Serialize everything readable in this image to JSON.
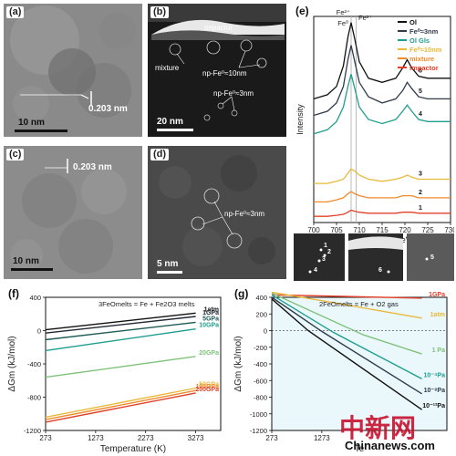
{
  "panel_a": {
    "label": "(a)",
    "lattice": "0.203 nm",
    "scale": "10 nm"
  },
  "panel_b": {
    "label": "(b)",
    "impactor": "Impactor",
    "mixture": "mixture",
    "np_large": "np-Fe⁰≈10nm",
    "np_small": "np-Fe⁰≈3nm",
    "scale": "20 nm"
  },
  "panel_c": {
    "label": "(c)",
    "lattice": "0.203 nm",
    "scale": "10 nm"
  },
  "panel_d": {
    "label": "(d)",
    "np_small": "np-Fe⁰≈3nm",
    "scale": "5 nm"
  },
  "inset_labels": [
    "1",
    "2",
    "3",
    "4",
    "6",
    "5"
  ],
  "watermark": {
    "cn": "中新网",
    "en": "Chinanews.com"
  },
  "chart_data": [
    {
      "id": "e",
      "panel_label": "(e)",
      "type": "line",
      "xlabel": "Energy Loss (eV)",
      "ylabel": "Intensity",
      "xlim": [
        700,
        730
      ],
      "xticks": [
        700,
        705,
        710,
        715,
        720,
        725,
        730
      ],
      "peak_labels": [
        "Fe²⁺",
        "Fe⁰",
        "Fe³⁺"
      ],
      "reference_lines_x": [
        708.2,
        709.3
      ],
      "legend_position": "top-right",
      "legend": [
        {
          "name": "Ol",
          "color": "#111111"
        },
        {
          "name": "Fe⁰≈3nm",
          "color": "#2f3b4c"
        },
        {
          "name": "Ol Gls",
          "color": "#1f9e8f"
        },
        {
          "name": "Fe⁰≈10nm",
          "color": "#e9b93c"
        },
        {
          "name": "mixture",
          "color": "#f08a2b"
        },
        {
          "name": "Impactor",
          "color": "#e0402a"
        }
      ],
      "series": [
        {
          "label": "6",
          "color": "#111111",
          "x": [
            700,
            703,
            705,
            706.5,
            707.5,
            708.2,
            709,
            710,
            712,
            715,
            718,
            719.5,
            720.5,
            721.5,
            723,
            725,
            727,
            730
          ],
          "y": [
            0.6,
            0.62,
            0.66,
            0.76,
            0.9,
            0.97,
            0.89,
            0.78,
            0.7,
            0.68,
            0.7,
            0.75,
            0.79,
            0.75,
            0.71,
            0.7,
            0.7,
            0.7
          ]
        },
        {
          "label": "5",
          "color": "#2f3b4c",
          "x": [
            700,
            703,
            705,
            706.5,
            707.5,
            708.2,
            709,
            710,
            712,
            715,
            718,
            719.5,
            720.5,
            721.5,
            723,
            725,
            727,
            730
          ],
          "y": [
            0.52,
            0.54,
            0.58,
            0.66,
            0.79,
            0.86,
            0.78,
            0.68,
            0.61,
            0.58,
            0.6,
            0.64,
            0.68,
            0.65,
            0.61,
            0.6,
            0.6,
            0.6
          ]
        },
        {
          "label": "4",
          "color": "#1f9e8f",
          "x": [
            700,
            703,
            705,
            706.5,
            707.5,
            708.2,
            709,
            710,
            712,
            715,
            718,
            719.5,
            720.5,
            721.5,
            723,
            725,
            727,
            730
          ],
          "y": [
            0.43,
            0.45,
            0.49,
            0.56,
            0.66,
            0.72,
            0.65,
            0.56,
            0.5,
            0.48,
            0.5,
            0.54,
            0.57,
            0.54,
            0.5,
            0.49,
            0.49,
            0.49
          ]
        },
        {
          "label": "3",
          "color": "#e9b93c",
          "x": [
            700,
            703,
            705,
            706.5,
            707.5,
            708.2,
            709,
            710,
            712,
            715,
            718,
            719.5,
            720.5,
            721.5,
            723,
            725,
            727,
            730
          ],
          "y": [
            0.19,
            0.19,
            0.2,
            0.21,
            0.24,
            0.26,
            0.25,
            0.23,
            0.21,
            0.2,
            0.21,
            0.22,
            0.23,
            0.22,
            0.21,
            0.21,
            0.21,
            0.21
          ]
        },
        {
          "label": "2",
          "color": "#f08a2b",
          "x": [
            700,
            703,
            705,
            706.5,
            707.5,
            708.2,
            709,
            710,
            712,
            715,
            718,
            719.5,
            720.5,
            721.5,
            723,
            725,
            727,
            730
          ],
          "y": [
            0.1,
            0.1,
            0.11,
            0.12,
            0.14,
            0.15,
            0.14,
            0.13,
            0.12,
            0.12,
            0.12,
            0.13,
            0.13,
            0.13,
            0.12,
            0.12,
            0.12,
            0.12
          ]
        },
        {
          "label": "1",
          "color": "#e0402a",
          "x": [
            700,
            703,
            705,
            706.5,
            707.5,
            708.2,
            709,
            710,
            712,
            715,
            718,
            719.5,
            720.5,
            721.5,
            723,
            725,
            727,
            730
          ],
          "y": [
            0.03,
            0.03,
            0.035,
            0.04,
            0.05,
            0.06,
            0.055,
            0.05,
            0.045,
            0.045,
            0.045,
            0.05,
            0.05,
            0.05,
            0.045,
            0.045,
            0.045,
            0.045
          ]
        }
      ]
    },
    {
      "id": "f",
      "panel_label": "(f)",
      "type": "line",
      "annotation": "3FeOmelts = Fe + Fe2O3 melts",
      "xlabel": "Temperature (K)",
      "ylabel": "ΔGm (kJ/mol)",
      "xlim": [
        273,
        3773
      ],
      "ylim": [
        -1200,
        400
      ],
      "xticks": [
        273,
        1273,
        2273,
        3273
      ],
      "yticks": [
        -1200,
        -800,
        -400,
        0,
        400
      ],
      "series": [
        {
          "name": "1atm",
          "color": "#111111",
          "x": [
            273,
            3273
          ],
          "y": [
            10,
            210
          ]
        },
        {
          "name": "1GPa",
          "color": "#222a35",
          "x": [
            273,
            3273
          ],
          "y": [
            -30,
            170
          ]
        },
        {
          "name": "5GPa",
          "color": "#1d5b57",
          "x": [
            273,
            3273
          ],
          "y": [
            -110,
            100
          ]
        },
        {
          "name": "10GPa",
          "color": "#1f9e8f",
          "x": [
            273,
            3273
          ],
          "y": [
            -240,
            20
          ]
        },
        {
          "name": "20GPa",
          "color": "#7fc37a",
          "x": [
            273,
            3273
          ],
          "y": [
            -560,
            -310
          ]
        },
        {
          "name": "50GPa",
          "color": "#e9b93c",
          "x": [
            273,
            3273
          ],
          "y": [
            -1040,
            -690
          ]
        },
        {
          "name": "100GPa",
          "color": "#f08a2b",
          "x": [
            273,
            3273
          ],
          "y": [
            -1070,
            -720
          ]
        },
        {
          "name": "200GPa",
          "color": "#e0402a",
          "x": [
            273,
            3273
          ],
          "y": [
            -1100,
            -750
          ]
        }
      ]
    },
    {
      "id": "g",
      "panel_label": "(g)",
      "type": "line",
      "annotation": "2FeOmelts = Fe + O2 gas",
      "xlabel": "Te",
      "ylabel": "ΔGm (kJ/mol)",
      "xlim": [
        273,
        3773
      ],
      "ylim": [
        -1200,
        400
      ],
      "xticks": [
        273,
        1273
      ],
      "yticks": [
        -1200,
        -1000,
        -800,
        -600,
        -400,
        -200,
        0,
        200,
        400
      ],
      "series": [
        {
          "name": "1GPa",
          "color": "#e0402a",
          "x": [
            273,
            3273
          ],
          "y": [
            430,
            390
          ]
        },
        {
          "name": "1atm",
          "color": "#e9b93c",
          "x": [
            273,
            1273,
            3273
          ],
          "y": [
            460,
            360,
            150
          ]
        },
        {
          "name": "1 Pa",
          "color": "#7fc37a",
          "x": [
            273,
            2100,
            3273
          ],
          "y": [
            450,
            -50,
            -280
          ]
        },
        {
          "name": "10⁻⁴Pa",
          "color": "#1f9e8f",
          "x": [
            273,
            1500,
            3273
          ],
          "y": [
            430,
            -20,
            -580
          ]
        },
        {
          "name": "10⁻⁸Pa",
          "color": "#2f3b4c",
          "x": [
            273,
            1273,
            3273
          ],
          "y": [
            400,
            -10,
            -760
          ]
        },
        {
          "name": "10⁻¹²Pa",
          "color": "#111111",
          "x": [
            273,
            1000,
            3273
          ],
          "y": [
            380,
            0,
            -950
          ]
        }
      ]
    }
  ]
}
